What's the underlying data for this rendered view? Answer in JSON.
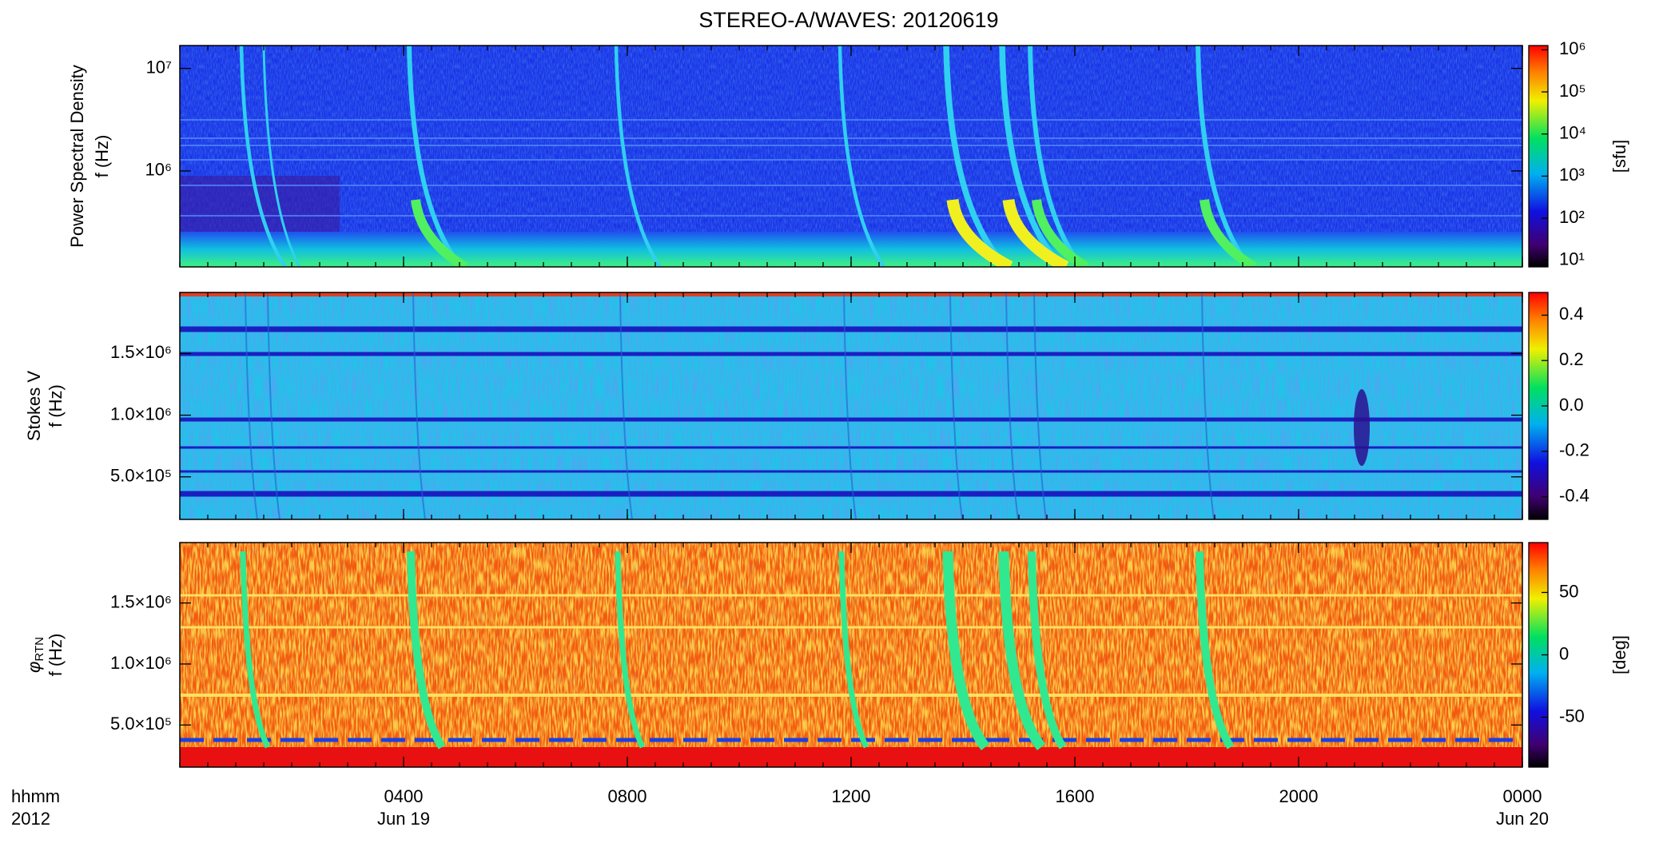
{
  "chart_data": {
    "type": "spectrogram",
    "title": "STEREO-A/WAVES: 20120619",
    "xlim": [
      0,
      24
    ],
    "xticks": [
      {
        "value": 4,
        "label": "0400"
      },
      {
        "value": 8,
        "label": "0800"
      },
      {
        "value": 12,
        "label": "1200"
      },
      {
        "value": 16,
        "label": "1600"
      },
      {
        "value": 20,
        "label": "2000"
      },
      {
        "value": 24,
        "label": "0000"
      }
    ],
    "xdates": [
      {
        "value": 4,
        "label": "Jun 19"
      },
      {
        "value": 24,
        "label": "Jun 20"
      }
    ],
    "xlabel": "hhmm",
    "xlabel2": "2012",
    "panels": [
      {
        "ylabel": "Power Spectral Density",
        "ylabel2": "f (Hz)",
        "ylog": true,
        "ylim": [
          116000,
          16700000
        ],
        "yticks": [
          {
            "value": 1000000,
            "label": "10⁶"
          },
          {
            "value": 10000000,
            "label": "10⁷"
          }
        ],
        "clog": true,
        "clim": [
          7,
          1260000
        ],
        "cticks": [
          {
            "value": 10,
            "label": "10¹"
          },
          {
            "value": 100,
            "label": "10²"
          },
          {
            "value": 1000,
            "label": "10³"
          },
          {
            "value": 10000,
            "label": "10⁴"
          },
          {
            "value": 100000,
            "label": "10⁵"
          },
          {
            "value": 1000000,
            "label": "10⁶"
          }
        ],
        "cunit": "[sfu]"
      },
      {
        "ylabel": "Stokes V",
        "ylabel2": "f (Hz)",
        "ylog": false,
        "ylim": [
          155000,
          1995000
        ],
        "yticks": [
          {
            "value": 500000,
            "label": "5.0×10⁵"
          },
          {
            "value": 1000000,
            "label": "1.0×10⁶"
          },
          {
            "value": 1500000,
            "label": "1.5×10⁶"
          }
        ],
        "clog": false,
        "clim": [
          -0.5,
          0.5
        ],
        "cticks": [
          -0.4,
          -0.2,
          {
            "value": 0,
            "label": "0.0"
          },
          0.2,
          0.4
        ]
      },
      {
        "ylabel": "φ",
        "ylabel_sub": "RTN",
        "ylabel2": "f (Hz)",
        "ylog": false,
        "ylim": [
          155000,
          1995000
        ],
        "yticks": [
          {
            "value": 500000,
            "label": "5.0×10⁵"
          },
          {
            "value": 1000000,
            "label": "1.0×10⁶"
          },
          {
            "value": 1500000,
            "label": "1.5×10⁶"
          }
        ],
        "clog": false,
        "clim": [
          -90,
          90
        ],
        "cticks": [
          -50,
          0,
          50
        ],
        "cunit": "[deg]"
      }
    ]
  }
}
